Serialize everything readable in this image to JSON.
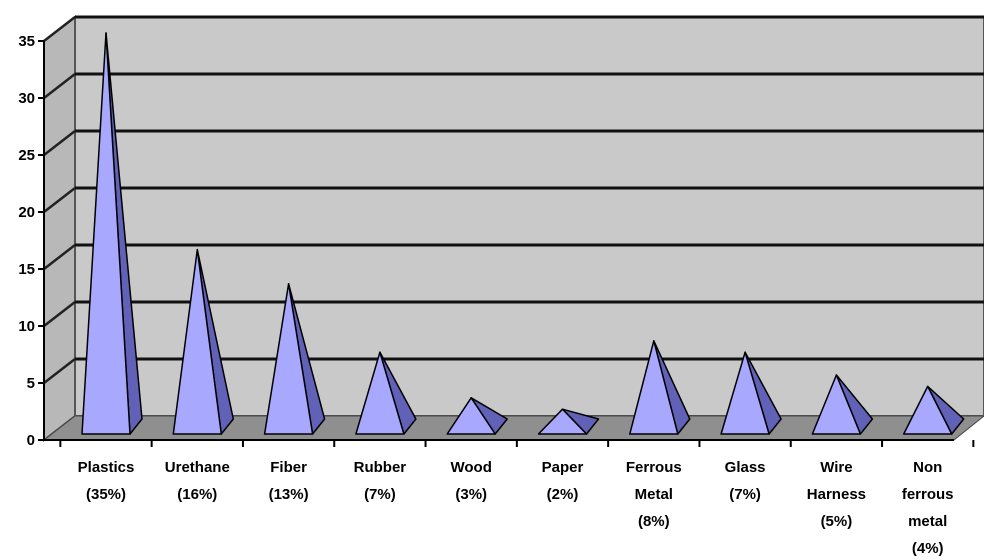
{
  "chart_data": {
    "type": "bar",
    "style": "3d-pyramid",
    "categories": [
      [
        "Plastics",
        "(35%)"
      ],
      [
        "Urethane",
        "(16%)"
      ],
      [
        "Fiber",
        "(13%)"
      ],
      [
        "Rubber",
        "(7%)"
      ],
      [
        "Wood",
        "(3%)"
      ],
      [
        "Paper",
        "(2%)"
      ],
      [
        "Ferrous",
        "Metal",
        "(8%)"
      ],
      [
        "Glass",
        "(7%)"
      ],
      [
        "Wire",
        "Harness",
        "(5%)"
      ],
      [
        "Non",
        "ferrous",
        "metal",
        "(4%)"
      ]
    ],
    "values": [
      35,
      16,
      13,
      7,
      3,
      2,
      8,
      7,
      5,
      4
    ],
    "ylim": [
      0,
      35
    ],
    "yticks": [
      "0",
      "5",
      "10",
      "15",
      "20",
      "25",
      "30",
      "35"
    ],
    "grid": true,
    "colors": {
      "wall": "#c9c9c9",
      "floor": "#8f8f8f",
      "pyramid_front": "#a8a8ff",
      "pyramid_side": "#6161b8",
      "outline": "#000000"
    }
  }
}
